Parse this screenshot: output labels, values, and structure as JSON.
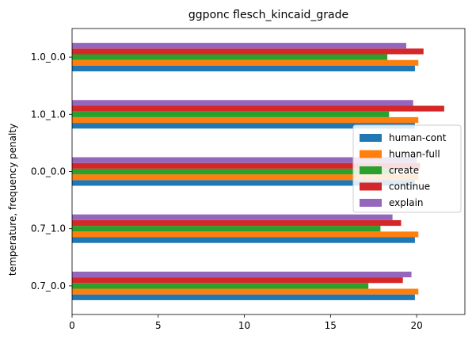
{
  "chart_data": {
    "type": "bar",
    "orientation": "horizontal",
    "title": "ggponc flesch_kincaid_grade",
    "xlabel": "",
    "ylabel": "temperature, frequency penalty",
    "categories": [
      "1.0_0.0",
      "1.0_1.0",
      "0.0_0.0",
      "0.7_1.0",
      "0.7_0.0"
    ],
    "xlim": [
      0,
      22.8
    ],
    "xticks": [
      0,
      5,
      10,
      15,
      20
    ],
    "grid": false,
    "legend_position": "right",
    "series": [
      {
        "name": "human-cont",
        "color": "#1f77b4",
        "values": [
          19.9,
          19.9,
          19.9,
          19.9,
          19.9
        ]
      },
      {
        "name": "human-full",
        "color": "#ff7f0e",
        "values": [
          20.1,
          20.1,
          20.1,
          20.1,
          20.1
        ]
      },
      {
        "name": "create",
        "color": "#2ca02c",
        "values": [
          18.3,
          18.4,
          18.7,
          17.9,
          17.2
        ]
      },
      {
        "name": "continue",
        "color": "#d62728",
        "values": [
          20.4,
          21.6,
          20.2,
          19.1,
          19.2
        ]
      },
      {
        "name": "explain",
        "color": "#9467bd",
        "values": [
          19.4,
          19.8,
          20.0,
          18.6,
          19.7
        ]
      }
    ]
  }
}
